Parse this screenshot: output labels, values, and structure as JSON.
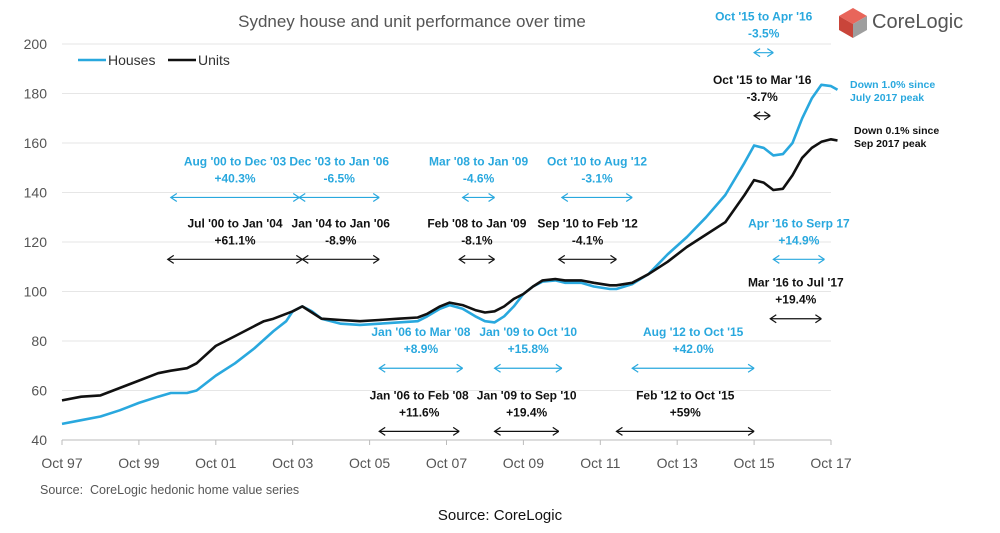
{
  "logo": {
    "brand_text": "CoreLogic",
    "icon": "corelogic-cube-logo"
  },
  "caption": "Source: CoreLogic",
  "colors": {
    "houses": "#29A8DE",
    "units": "#111111",
    "grid": "#E6E6E6",
    "axis_text": "#555555"
  },
  "chart_data": {
    "type": "line",
    "title": "Sydney house and unit performance over time",
    "source": "Source:  CoreLogic hedonic home value series",
    "xlabel": "",
    "ylabel": "",
    "ylim": [
      40,
      200
    ],
    "yticks": [
      40,
      60,
      80,
      100,
      120,
      140,
      160,
      180,
      200
    ],
    "xlim": [
      1997.75,
      2017.75
    ],
    "xticks": [
      {
        "x": 1997.75,
        "label": "Oct 97"
      },
      {
        "x": 1999.75,
        "label": "Oct 99"
      },
      {
        "x": 2001.75,
        "label": "Oct 01"
      },
      {
        "x": 2003.75,
        "label": "Oct 03"
      },
      {
        "x": 2005.75,
        "label": "Oct 05"
      },
      {
        "x": 2007.75,
        "label": "Oct 07"
      },
      {
        "x": 2009.75,
        "label": "Oct 09"
      },
      {
        "x": 2011.75,
        "label": "Oct 11"
      },
      {
        "x": 2013.75,
        "label": "Oct 13"
      },
      {
        "x": 2015.75,
        "label": "Oct 15"
      },
      {
        "x": 2017.75,
        "label": "Oct 17"
      }
    ],
    "grid": "horizontal",
    "legend": {
      "placement": "top-left",
      "entries": [
        "Houses",
        "Units"
      ]
    },
    "series": [
      {
        "name": "Houses",
        "color": "#29A8DE",
        "points": [
          [
            1997.75,
            46.5
          ],
          [
            1998.25,
            48
          ],
          [
            1998.75,
            49.5
          ],
          [
            1999.25,
            52
          ],
          [
            1999.75,
            55
          ],
          [
            2000.25,
            57.5
          ],
          [
            2000.58,
            59
          ],
          [
            2001.0,
            59
          ],
          [
            2001.25,
            60
          ],
          [
            2001.75,
            66
          ],
          [
            2002.25,
            71
          ],
          [
            2002.75,
            77
          ],
          [
            2003.25,
            84
          ],
          [
            2003.58,
            88
          ],
          [
            2003.75,
            92
          ],
          [
            2004.0,
            94
          ],
          [
            2004.25,
            92
          ],
          [
            2004.5,
            89
          ],
          [
            2005.0,
            87
          ],
          [
            2005.5,
            86.5
          ],
          [
            2006.0,
            87
          ],
          [
            2006.5,
            87.5
          ],
          [
            2007.0,
            88
          ],
          [
            2007.25,
            90
          ],
          [
            2007.58,
            93
          ],
          [
            2007.83,
            94.5
          ],
          [
            2008.17,
            93
          ],
          [
            2008.5,
            90
          ],
          [
            2008.75,
            88
          ],
          [
            2009.0,
            87.5
          ],
          [
            2009.25,
            90
          ],
          [
            2009.5,
            94
          ],
          [
            2009.75,
            99
          ],
          [
            2010.0,
            102
          ],
          [
            2010.25,
            104
          ],
          [
            2010.58,
            104.5
          ],
          [
            2010.83,
            103.5
          ],
          [
            2011.25,
            103.5
          ],
          [
            2011.58,
            102
          ],
          [
            2012.0,
            101
          ],
          [
            2012.17,
            101
          ],
          [
            2012.58,
            103
          ],
          [
            2013.0,
            107
          ],
          [
            2013.5,
            115
          ],
          [
            2014.0,
            122
          ],
          [
            2014.5,
            130
          ],
          [
            2015.0,
            139
          ],
          [
            2015.5,
            152
          ],
          [
            2015.75,
            159
          ],
          [
            2016.0,
            158
          ],
          [
            2016.25,
            155
          ],
          [
            2016.5,
            155.5
          ],
          [
            2016.75,
            160
          ],
          [
            2017.0,
            170
          ],
          [
            2017.25,
            178
          ],
          [
            2017.5,
            183.5
          ],
          [
            2017.75,
            183
          ],
          [
            2017.92,
            181.5
          ]
        ]
      },
      {
        "name": "Units",
        "color": "#111111",
        "points": [
          [
            1997.75,
            56
          ],
          [
            1998.25,
            57.5
          ],
          [
            1998.75,
            58
          ],
          [
            1999.25,
            61
          ],
          [
            1999.75,
            64
          ],
          [
            2000.25,
            67
          ],
          [
            2000.58,
            68
          ],
          [
            2001.0,
            69
          ],
          [
            2001.25,
            71
          ],
          [
            2001.75,
            78
          ],
          [
            2002.25,
            82
          ],
          [
            2002.75,
            86
          ],
          [
            2003.0,
            88
          ],
          [
            2003.25,
            89
          ],
          [
            2003.75,
            92
          ],
          [
            2004.0,
            94
          ],
          [
            2004.25,
            91.5
          ],
          [
            2004.5,
            89
          ],
          [
            2005.0,
            88.5
          ],
          [
            2005.5,
            88
          ],
          [
            2006.0,
            88.5
          ],
          [
            2006.5,
            89
          ],
          [
            2007.0,
            89.5
          ],
          [
            2007.25,
            91
          ],
          [
            2007.58,
            94
          ],
          [
            2007.83,
            95.5
          ],
          [
            2008.17,
            94.5
          ],
          [
            2008.5,
            92.5
          ],
          [
            2008.75,
            91.5
          ],
          [
            2009.0,
            92
          ],
          [
            2009.25,
            94
          ],
          [
            2009.5,
            97
          ],
          [
            2009.75,
            99
          ],
          [
            2010.0,
            102
          ],
          [
            2010.25,
            104.5
          ],
          [
            2010.58,
            105
          ],
          [
            2010.83,
            104.5
          ],
          [
            2011.25,
            104.5
          ],
          [
            2011.58,
            103.5
          ],
          [
            2012.0,
            102.5
          ],
          [
            2012.17,
            102.5
          ],
          [
            2012.58,
            103.5
          ],
          [
            2013.0,
            107
          ],
          [
            2013.5,
            112
          ],
          [
            2014.0,
            118
          ],
          [
            2014.5,
            123
          ],
          [
            2015.0,
            128
          ],
          [
            2015.5,
            139
          ],
          [
            2015.75,
            145
          ],
          [
            2016.0,
            144
          ],
          [
            2016.25,
            141
          ],
          [
            2016.5,
            141.5
          ],
          [
            2016.75,
            147
          ],
          [
            2017.0,
            154
          ],
          [
            2017.25,
            158
          ],
          [
            2017.5,
            160.5
          ],
          [
            2017.75,
            161.5
          ],
          [
            2017.92,
            161
          ]
        ]
      }
    ],
    "annotations": [
      {
        "series": "Houses",
        "period": "Aug '00 to Dec '03",
        "change": "+40.3%",
        "x0": 2000.58,
        "x1": 2003.92,
        "y": 138
      },
      {
        "series": "Houses",
        "period": "Dec '03 to Jan '06",
        "change": "-6.5%",
        "x0": 2003.92,
        "x1": 2006.0,
        "y": 138
      },
      {
        "series": "Houses",
        "period": "Mar '08 to Jan '09",
        "change": "-4.6%",
        "x0": 2008.17,
        "x1": 2009.0,
        "y": 138
      },
      {
        "series": "Houses",
        "period": "Oct '10 to Aug '12",
        "change": "-3.1%",
        "x0": 2010.75,
        "x1": 2012.58,
        "y": 138
      },
      {
        "series": "Houses",
        "period": "Oct '15 to Apr '16",
        "change": "-3.5%",
        "x0": 2015.75,
        "x1": 2016.25,
        "y": 196.5
      },
      {
        "series": "Houses",
        "period": "Apr '16 to Serp 17",
        "change": "+14.9%",
        "x0": 2016.25,
        "x1": 2017.58,
        "y": 113
      },
      {
        "series": "Houses",
        "period": "Jan '06 to Mar '08",
        "change": "+8.9%",
        "x0": 2006.0,
        "x1": 2008.17,
        "y": 69
      },
      {
        "series": "Houses",
        "period": "Jan '09 to Oct '10",
        "change": "+15.8%",
        "x0": 2009.0,
        "x1": 2010.75,
        "y": 69
      },
      {
        "series": "Houses",
        "period": "Aug '12 to Oct '15",
        "change": "+42.0%",
        "x0": 2012.58,
        "x1": 2015.75,
        "y": 69
      },
      {
        "series": "Units",
        "period": "Jul '00 to Jan '04",
        "change": "+61.1%",
        "x0": 2000.5,
        "x1": 2004.0,
        "y": 113
      },
      {
        "series": "Units",
        "period": "Jan '04 to Jan '06",
        "change": "-8.9%",
        "x0": 2004.0,
        "x1": 2006.0,
        "y": 113
      },
      {
        "series": "Units",
        "period": "Feb '08 to Jan '09",
        "change": "-8.1%",
        "x0": 2008.08,
        "x1": 2009.0,
        "y": 113
      },
      {
        "series": "Units",
        "period": "Sep '10 to Feb '12",
        "change": "-4.1%",
        "x0": 2010.67,
        "x1": 2012.17,
        "y": 113
      },
      {
        "series": "Units",
        "period": "Oct '15 to Mar '16",
        "change": "-3.7%",
        "x0": 2015.75,
        "x1": 2016.17,
        "y": 171
      },
      {
        "series": "Units",
        "period": "Mar '16 to Jul '17",
        "change": "+19.4%",
        "x0": 2016.17,
        "x1": 2017.5,
        "y": 89
      },
      {
        "series": "Units",
        "period": "Jan '06 to Feb '08",
        "change": "+11.6%",
        "x0": 2006.0,
        "x1": 2008.08,
        "y": 43.5
      },
      {
        "series": "Units",
        "period": "Jan '09 to Sep '10",
        "change": "+19.4%",
        "x0": 2009.0,
        "x1": 2010.67,
        "y": 43.5
      },
      {
        "series": "Units",
        "period": "Feb '12 to Oct '15",
        "change": "+59%",
        "x0": 2012.17,
        "x1": 2015.75,
        "y": 43.5
      }
    ],
    "peak_notes": [
      {
        "series": "Houses",
        "lines": [
          "Down 1.0% since",
          "July 2017 peak"
        ]
      },
      {
        "series": "Units",
        "lines": [
          "Down 0.1% since",
          "Sep 2017 peak"
        ]
      }
    ]
  }
}
